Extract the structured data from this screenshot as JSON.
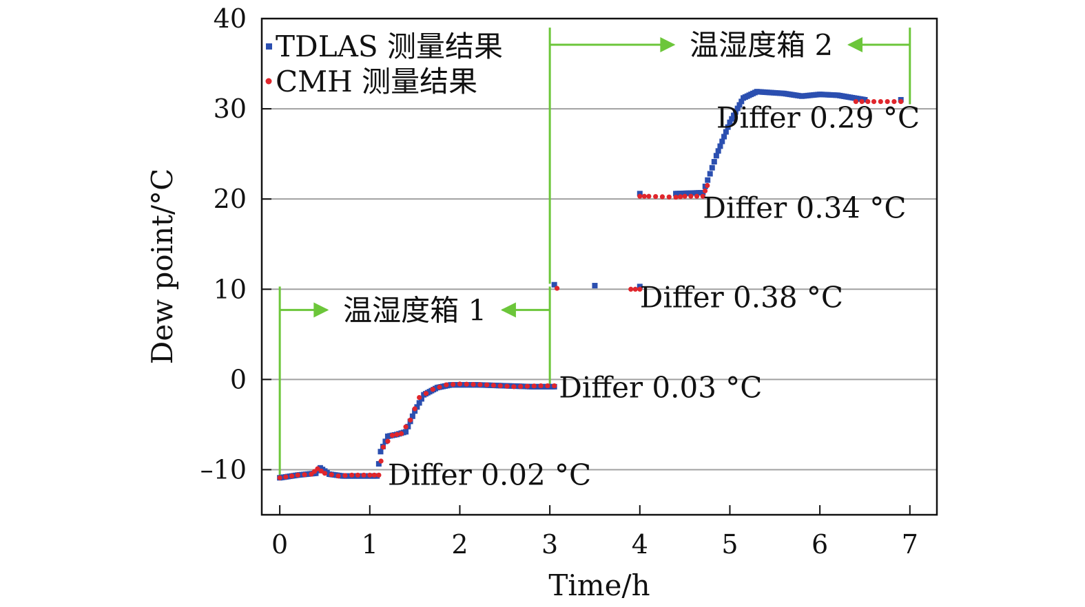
{
  "chart_data": {
    "type": "scatter",
    "xlabel": "Time/h",
    "ylabel": "Dew point/°C",
    "xlim": [
      -0.2,
      7.3
    ],
    "ylim": [
      -15,
      40
    ],
    "xticks": [
      0,
      1,
      2,
      3,
      4,
      5,
      6,
      7
    ],
    "yticks": [
      -10,
      0,
      10,
      20,
      30,
      40
    ],
    "xtick_labels": [
      "0",
      "1",
      "2",
      "3",
      "4",
      "5",
      "6",
      "7"
    ],
    "ytick_labels": [
      "–10",
      "0",
      "10",
      "20",
      "30",
      "40"
    ],
    "grid": "horizontal",
    "legend_position": "top-left",
    "series": [
      {
        "name": "TDLAS 测量结果",
        "color": "#2b4fb0",
        "marker": "square",
        "x": [
          0.0,
          0.2,
          0.4,
          0.45,
          0.55,
          0.7,
          0.9,
          1.08,
          1.12,
          1.2,
          1.3,
          1.4,
          1.5,
          1.6,
          1.75,
          1.9,
          2.2,
          2.5,
          2.8,
          3.05,
          3.05,
          3.5,
          4.0,
          4.0,
          4.4,
          4.7,
          4.78,
          4.85,
          5.0,
          5.15,
          5.3,
          5.6,
          5.8,
          6.0,
          6.2,
          6.5,
          6.9
        ],
        "y": [
          -10.9,
          -10.6,
          -10.4,
          -9.8,
          -10.5,
          -10.7,
          -10.7,
          -10.7,
          -8.0,
          -6.3,
          -6.1,
          -5.8,
          -3.5,
          -1.7,
          -0.9,
          -0.6,
          -0.6,
          -0.7,
          -0.8,
          -0.8,
          10.5,
          10.4,
          10.3,
          20.6,
          20.6,
          20.7,
          22.8,
          24.8,
          28.5,
          31.2,
          31.9,
          31.7,
          31.4,
          31.6,
          31.5,
          31.0,
          31.0
        ]
      },
      {
        "name": "CMH 测量结果",
        "color": "#e0262c",
        "marker": "circle",
        "x": [
          0.0,
          0.2,
          0.35,
          0.42,
          0.5,
          0.65,
          0.8,
          1.0,
          1.1,
          1.15,
          1.25,
          1.35,
          1.45,
          1.55,
          1.7,
          1.85,
          2.0,
          2.3,
          2.6,
          2.9,
          3.05,
          3.08,
          3.9,
          4.0,
          4.0,
          4.1,
          4.4,
          4.5,
          4.7,
          4.75,
          6.4,
          6.6,
          6.9
        ],
        "y": [
          -10.9,
          -10.6,
          -10.5,
          -9.9,
          -10.4,
          -10.7,
          -10.6,
          -10.6,
          -10.6,
          -7.5,
          -6.2,
          -6.0,
          -4.5,
          -2.0,
          -1.1,
          -0.6,
          -0.5,
          -0.6,
          -0.8,
          -0.7,
          -0.7,
          10.1,
          10.0,
          10.0,
          20.3,
          20.3,
          20.2,
          20.3,
          20.3,
          21.5,
          30.8,
          30.8,
          30.8
        ]
      }
    ],
    "annotations": [
      {
        "text": "Differ 0.02 °C",
        "x": 1.2,
        "y": -11.7
      },
      {
        "text": "Differ 0.03 °C",
        "x": 3.1,
        "y": -2.0
      },
      {
        "text": "Differ 0.38 °C",
        "x": 4.0,
        "y": 8.0
      },
      {
        "text": "Differ 0.34 °C",
        "x": 4.7,
        "y": 17.9
      },
      {
        "text": "Differ 0.29 °C",
        "x": 4.85,
        "y": 27.9
      }
    ],
    "regions": [
      {
        "label": "温湿度箱 1",
        "x_start": 0.0,
        "x_end": 3.0,
        "y_arrow": 7.7,
        "y_top": 10.3,
        "label_x": 1.5
      },
      {
        "label": "温湿度箱 2",
        "x_start": 3.0,
        "x_end": 7.0,
        "y_arrow": 37.1,
        "y_top": 39.0,
        "label_x": 5.35
      }
    ],
    "colors": {
      "axis": "#111111",
      "grid": "#a0a0a0",
      "region_arrow": "#6cc63a"
    }
  }
}
